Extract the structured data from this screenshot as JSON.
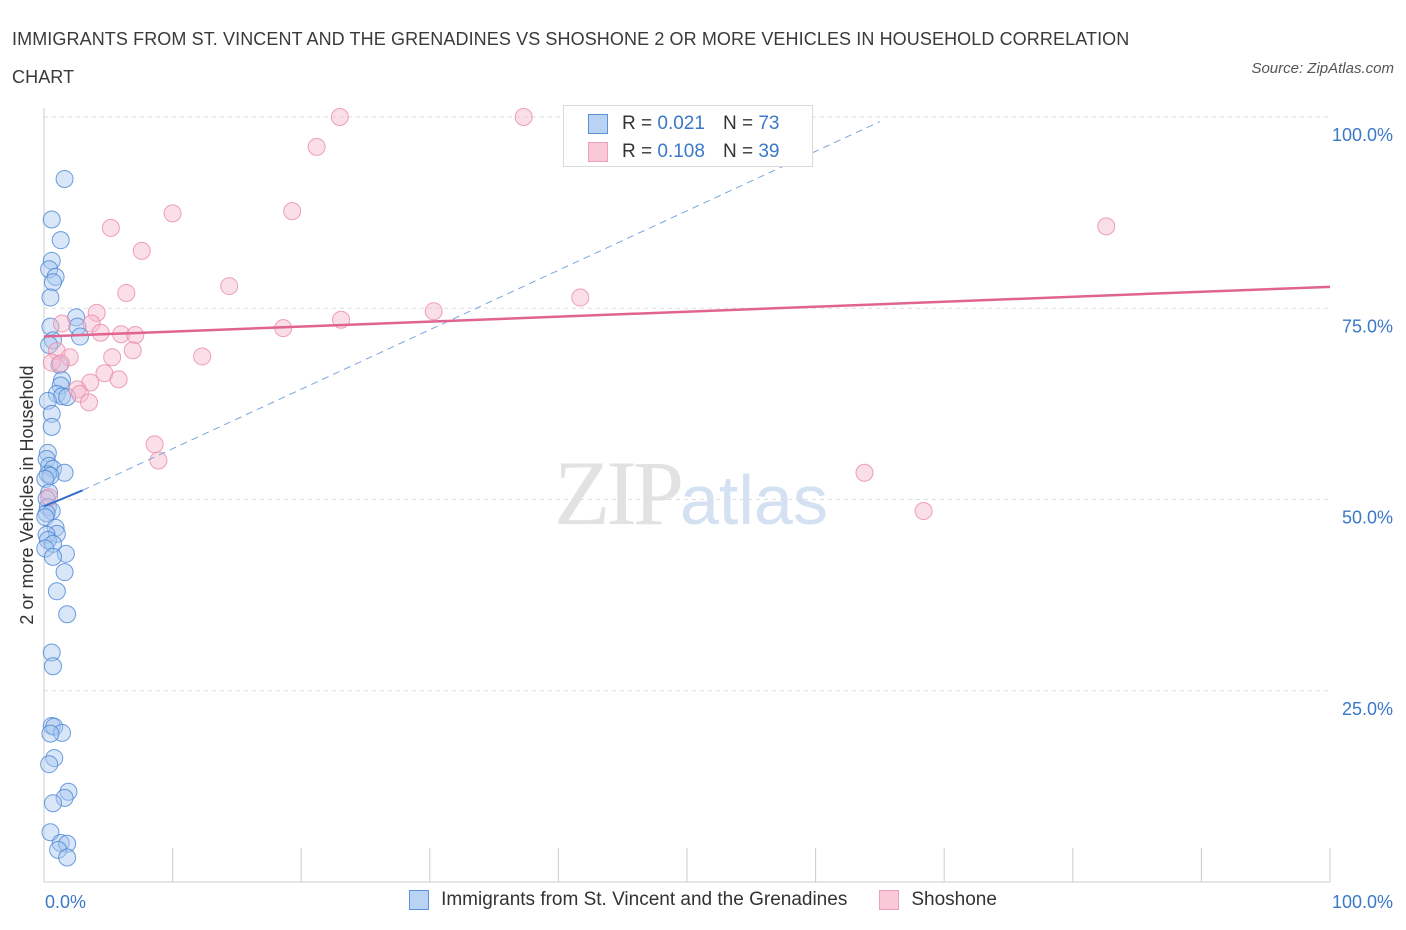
{
  "header": {
    "title": "IMMIGRANTS FROM ST. VINCENT AND THE GRENADINES VS SHOSHONE 2 OR MORE VEHICLES IN HOUSEHOLD CORRELATION CHART",
    "source": "Source: ZipAtlas.com"
  },
  "legend": {
    "r_label": "R =",
    "n_label": "N =",
    "series": [
      {
        "r": "0.021",
        "n": "73"
      },
      {
        "r": "0.108",
        "n": "39"
      }
    ]
  },
  "watermark": {
    "zip": "ZIP",
    "atlas": "atlas"
  },
  "colors": {
    "blue_fill": "#a9c8f0",
    "blue_stroke": "#4a86d4",
    "blue_line": "#2f6fcf",
    "pink_fill": "#f6b9cd",
    "pink_stroke": "#e98aa9",
    "pink_line": "#e0648f",
    "tick_label": "#3a78c9",
    "grid": "#dddddd"
  },
  "chart_data": {
    "type": "scatter",
    "title": "IMMIGRANTS FROM ST. VINCENT AND THE GRENADINES VS SHOSHONE 2 OR MORE VEHICLES IN HOUSEHOLD CORRELATION CHART",
    "xlabel": "",
    "ylabel": "2 or more Vehicles in Household",
    "xlim": [
      0,
      100
    ],
    "ylim": [
      0,
      100
    ],
    "x_tick_labels": [
      "0.0%",
      "100.0%"
    ],
    "y_ticks": [
      {
        "value": 25,
        "label": "25.0%"
      },
      {
        "value": 50,
        "label": "50.0%"
      },
      {
        "value": 75,
        "label": "75.0%"
      },
      {
        "value": 100,
        "label": "100.0%"
      }
    ],
    "series": [
      {
        "name": "Immigrants from St. Vincent and the Grenadines",
        "color": "#a9c8f0",
        "R": 0.021,
        "N": 73,
        "trend": {
          "x": [
            0,
            3
          ],
          "y": [
            49.1,
            51.2
          ],
          "extended": {
            "x": [
              3,
              65
            ],
            "y": [
              51.2,
              99.4
            ]
          }
        },
        "points": [
          [
            1.6,
            91.9
          ],
          [
            0.6,
            86.6
          ],
          [
            1.3,
            83.9
          ],
          [
            0.6,
            81.2
          ],
          [
            0.4,
            80.1
          ],
          [
            0.9,
            79.1
          ],
          [
            0.7,
            78.4
          ],
          [
            0.5,
            76.4
          ],
          [
            2.5,
            73.8
          ],
          [
            2.6,
            72.6
          ],
          [
            0.5,
            72.6
          ],
          [
            2.8,
            71.3
          ],
          [
            0.7,
            70.8
          ],
          [
            0.4,
            70.2
          ],
          [
            1.2,
            67.6
          ],
          [
            1.4,
            65.6
          ],
          [
            1.3,
            64.9
          ],
          [
            1.0,
            63.8
          ],
          [
            1.4,
            63.5
          ],
          [
            1.8,
            63.4
          ],
          [
            0.3,
            62.9
          ],
          [
            0.6,
            61.2
          ],
          [
            0.6,
            59.5
          ],
          [
            0.3,
            56.1
          ],
          [
            0.2,
            55.3
          ],
          [
            0.4,
            54.4
          ],
          [
            0.7,
            54.0
          ],
          [
            1.6,
            53.5
          ],
          [
            0.3,
            53.3
          ],
          [
            0.5,
            53.1
          ],
          [
            0.1,
            52.7
          ],
          [
            0.4,
            50.9
          ],
          [
            0.2,
            50.1
          ],
          [
            0.3,
            49.0
          ],
          [
            0.6,
            48.5
          ],
          [
            0.2,
            48.2
          ],
          [
            0.1,
            47.7
          ],
          [
            0.9,
            46.3
          ],
          [
            1.0,
            45.5
          ],
          [
            0.2,
            45.4
          ],
          [
            0.3,
            44.7
          ],
          [
            0.7,
            44.2
          ],
          [
            0.1,
            43.6
          ],
          [
            1.7,
            42.9
          ],
          [
            0.7,
            42.5
          ],
          [
            1.6,
            40.5
          ],
          [
            1.0,
            38.0
          ],
          [
            1.8,
            35.0
          ],
          [
            0.6,
            30.0
          ],
          [
            0.7,
            28.2
          ],
          [
            0.6,
            20.4
          ],
          [
            0.8,
            20.3
          ],
          [
            1.4,
            19.5
          ],
          [
            0.5,
            19.4
          ],
          [
            0.8,
            16.2
          ],
          [
            0.4,
            15.4
          ],
          [
            1.9,
            11.8
          ],
          [
            1.6,
            11.0
          ],
          [
            0.7,
            10.3
          ],
          [
            0.5,
            6.5
          ],
          [
            1.3,
            5.1
          ],
          [
            1.8,
            5.0
          ],
          [
            1.1,
            4.2
          ],
          [
            1.8,
            3.2
          ]
        ]
      },
      {
        "name": "Shoshone",
        "color": "#f6b9cd",
        "R": 0.108,
        "N": 39,
        "trend": {
          "x": [
            0,
            100
          ],
          "y": [
            71.3,
            77.8
          ]
        },
        "points": [
          [
            23.0,
            100.0
          ],
          [
            37.3,
            100.0
          ],
          [
            21.2,
            96.1
          ],
          [
            19.3,
            87.7
          ],
          [
            10.0,
            87.4
          ],
          [
            5.2,
            85.5
          ],
          [
            82.6,
            85.7
          ],
          [
            7.6,
            82.5
          ],
          [
            14.4,
            77.9
          ],
          [
            6.4,
            77.0
          ],
          [
            41.7,
            76.4
          ],
          [
            4.1,
            74.4
          ],
          [
            30.3,
            74.6
          ],
          [
            1.4,
            73.0
          ],
          [
            23.1,
            73.5
          ],
          [
            3.7,
            73.0
          ],
          [
            18.6,
            72.4
          ],
          [
            4.4,
            71.8
          ],
          [
            6.0,
            71.6
          ],
          [
            7.1,
            71.5
          ],
          [
            1.0,
            69.4
          ],
          [
            6.9,
            69.5
          ],
          [
            2.0,
            68.6
          ],
          [
            12.3,
            68.7
          ],
          [
            5.3,
            68.6
          ],
          [
            0.6,
            67.9
          ],
          [
            1.3,
            67.8
          ],
          [
            4.7,
            66.5
          ],
          [
            5.8,
            65.7
          ],
          [
            3.6,
            65.3
          ],
          [
            2.6,
            64.4
          ],
          [
            2.8,
            63.8
          ],
          [
            3.5,
            62.7
          ],
          [
            8.6,
            57.2
          ],
          [
            8.9,
            55.1
          ],
          [
            63.8,
            53.5
          ],
          [
            68.4,
            48.5
          ],
          [
            0.4,
            50.3
          ]
        ]
      }
    ]
  }
}
